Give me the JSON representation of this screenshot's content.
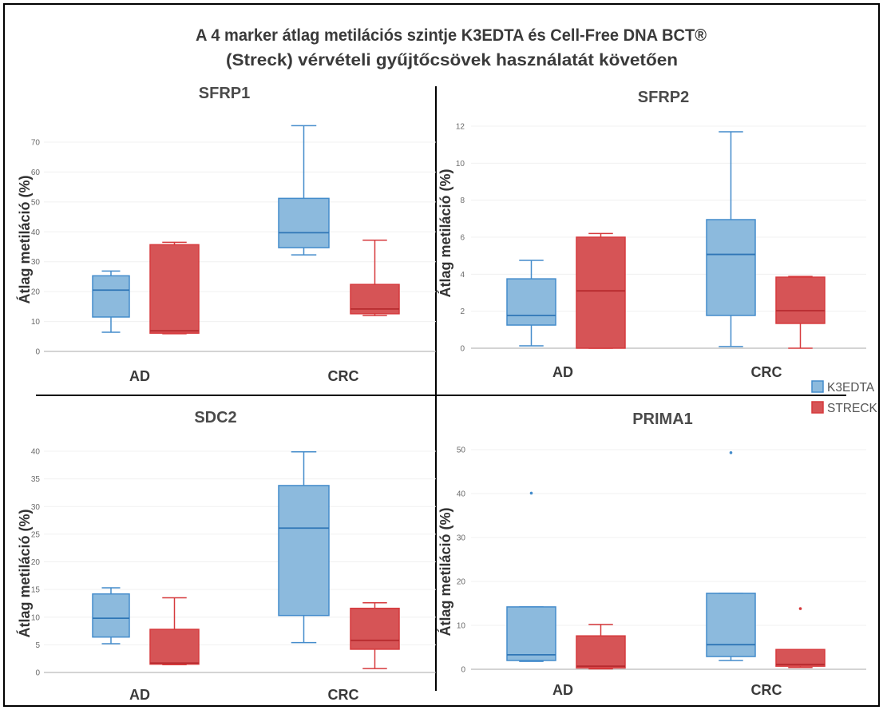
{
  "title": {
    "line1": "A 4 marker átlag metilációs szintje K3EDTA és Cell-Free DNA BCT®",
    "line2": "(Streck) vérvételi gyűjtőcsövek használatát követően"
  },
  "legend": {
    "position": "right",
    "items": [
      {
        "label": "K3EDTA"
      },
      {
        "label": "STRECK"
      }
    ]
  },
  "colors": {
    "K3EDTA": {
      "fill": "#8cbadd",
      "stroke": "#448ccb",
      "median": "#2f76b6"
    },
    "STRECK": {
      "fill": "#d65456",
      "stroke": "#d63a3d",
      "median": "#b72b2f"
    }
  },
  "chart_data": [
    {
      "type": "box",
      "title": "SFRP1",
      "xlabel": "",
      "ylabel": "Átlag metiláció (%)",
      "categories": [
        "AD",
        "CRC"
      ],
      "yticks": [
        0,
        10,
        20,
        30,
        40,
        50,
        60,
        70
      ],
      "ylim": [
        0,
        77
      ],
      "grid": true,
      "series": [
        {
          "name": "K3EDTA",
          "boxes": [
            {
              "min": 6.4,
              "q1": 11.5,
              "median": 20.5,
              "q3": 25.3,
              "max": 26.9,
              "outliers": []
            },
            {
              "min": 32.3,
              "q1": 34.7,
              "median": 39.7,
              "q3": 51.2,
              "max": 75.5,
              "outliers": []
            }
          ]
        },
        {
          "name": "STRECK",
          "boxes": [
            {
              "min": 5.9,
              "q1": 6.1,
              "median": 6.9,
              "q3": 35.7,
              "max": 36.5,
              "outliers": []
            },
            {
              "min": 12.0,
              "q1": 12.6,
              "median": 14.2,
              "q3": 22.4,
              "max": 37.2,
              "outliers": []
            }
          ]
        }
      ]
    },
    {
      "type": "box",
      "title": "SFRP2",
      "xlabel": "",
      "ylabel": "Átlag metiláció (%)",
      "categories": [
        "AD",
        "CRC"
      ],
      "yticks": [
        0,
        2,
        4,
        6,
        8,
        10,
        12
      ],
      "ylim": [
        0,
        12.3
      ],
      "grid": true,
      "series": [
        {
          "name": "K3EDTA",
          "boxes": [
            {
              "min": 0.13,
              "q1": 1.25,
              "median": 1.77,
              "q3": 3.75,
              "max": 4.75,
              "outliers": []
            },
            {
              "min": 0.09,
              "q1": 1.77,
              "median": 5.07,
              "q3": 6.95,
              "max": 11.7,
              "outliers": []
            }
          ]
        },
        {
          "name": "STRECK",
          "boxes": [
            {
              "min": 0,
              "q1": 0,
              "median": 3.1,
              "q3": 6.0,
              "max": 6.2,
              "outliers": []
            },
            {
              "min": 0,
              "q1": 1.34,
              "median": 2.03,
              "q3": 3.84,
              "max": 3.88,
              "outliers": []
            }
          ]
        }
      ]
    },
    {
      "type": "box",
      "title": "SDC2",
      "xlabel": "",
      "ylabel": "Átlag metiláció (%)",
      "categories": [
        "AD",
        "CRC"
      ],
      "yticks": [
        0,
        5,
        10,
        15,
        20,
        25,
        30,
        35,
        40
      ],
      "ylim": [
        0,
        41
      ],
      "grid": true,
      "series": [
        {
          "name": "K3EDTA",
          "boxes": [
            {
              "min": 5.2,
              "q1": 6.4,
              "median": 9.8,
              "q3": 14.2,
              "max": 15.3,
              "outliers": []
            },
            {
              "min": 5.4,
              "q1": 10.3,
              "median": 26.1,
              "q3": 33.8,
              "max": 39.9,
              "outliers": []
            }
          ]
        },
        {
          "name": "STRECK",
          "boxes": [
            {
              "min": 1.4,
              "q1": 1.5,
              "median": 1.7,
              "q3": 7.8,
              "max": 13.5,
              "outliers": []
            },
            {
              "min": 0.7,
              "q1": 4.2,
              "median": 5.8,
              "q3": 11.6,
              "max": 12.6,
              "outliers": []
            }
          ]
        }
      ]
    },
    {
      "type": "box",
      "title": "PRIMA1",
      "xlabel": "",
      "ylabel": "Átlag metiláció (%)",
      "categories": [
        "AD",
        "CRC"
      ],
      "yticks": [
        0,
        10,
        20,
        30,
        40,
        50
      ],
      "ylim": [
        0,
        51
      ],
      "grid": true,
      "series": [
        {
          "name": "K3EDTA",
          "boxes": [
            {
              "min": 1.8,
              "q1": 2.0,
              "median": 3.3,
              "q3": 14.2,
              "max": 14.2,
              "outliers": [
                40.1
              ]
            },
            {
              "min": 2.0,
              "q1": 2.9,
              "median": 5.6,
              "q3": 17.3,
              "max": 17.3,
              "outliers": [
                49.3
              ]
            }
          ]
        },
        {
          "name": "STRECK",
          "boxes": [
            {
              "min": 0.1,
              "q1": 0.3,
              "median": 0.7,
              "q3": 7.6,
              "max": 10.2,
              "outliers": []
            },
            {
              "min": 0.4,
              "q1": 0.7,
              "median": 1.1,
              "q3": 4.5,
              "max": 4.5,
              "outliers": [
                13.8
              ]
            }
          ]
        }
      ]
    }
  ]
}
